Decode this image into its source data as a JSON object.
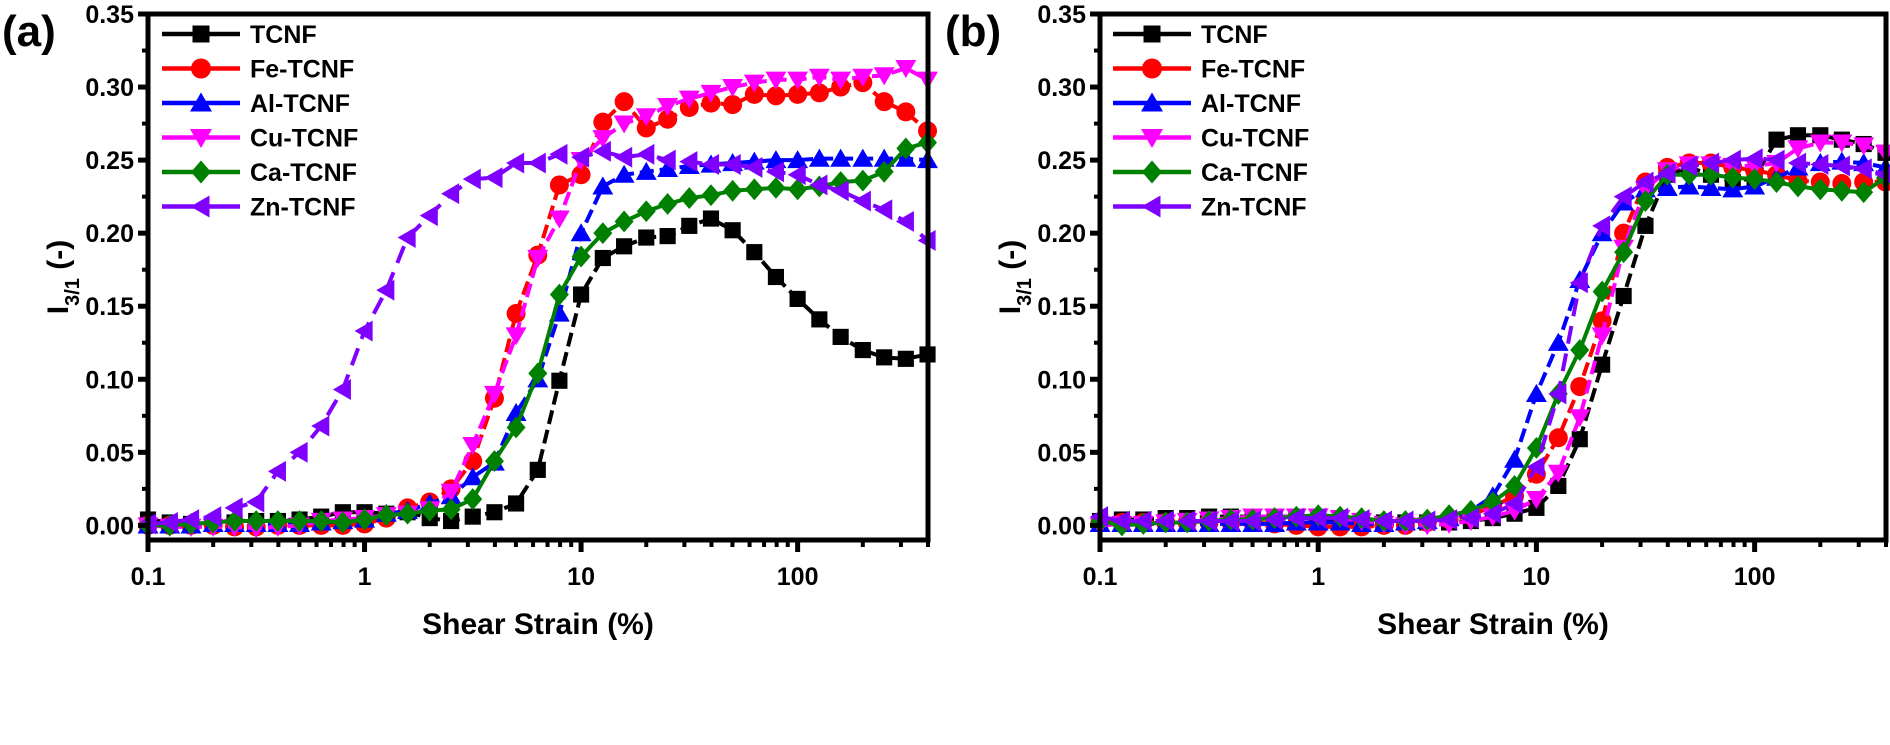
{
  "chart_data": [
    {
      "type": "line",
      "panel_label": "(a)",
      "xlabel": "Shear Strain (%)",
      "ylabel_main": "I",
      "ylabel_sub": "3/1",
      "ylabel_suffix": " (-)",
      "xscale": "log",
      "xlim": [
        0.1,
        400
      ],
      "ylim": [
        -0.01,
        0.35
      ],
      "xticks": [
        "0.1",
        "1",
        "10",
        "100"
      ],
      "xtick_values": [
        0.1,
        1,
        10,
        100
      ],
      "yticks": [
        "0.00",
        "0.05",
        "0.10",
        "0.15",
        "0.20",
        "0.25",
        "0.30",
        "0.35"
      ],
      "ytick_values": [
        0,
        0.05,
        0.1,
        0.15,
        0.2,
        0.25,
        0.3,
        0.35
      ],
      "legend_position": "top-left",
      "x": [
        0.1,
        0.126,
        0.158,
        0.2,
        0.251,
        0.316,
        0.398,
        0.501,
        0.631,
        0.794,
        1.0,
        1.26,
        1.58,
        2.0,
        2.51,
        3.16,
        3.98,
        5.01,
        6.31,
        7.94,
        10.0,
        12.6,
        15.8,
        20.0,
        25.1,
        31.6,
        39.8,
        50.1,
        63.1,
        79.4,
        100,
        126,
        158,
        200,
        251,
        316,
        398
      ],
      "series": [
        {
          "name": "TCNF",
          "color": "#000000",
          "marker": "square",
          "values": [
            0.004,
            0.002,
            0.001,
            0.001,
            0.002,
            0.003,
            0.003,
            0.004,
            0.006,
            0.009,
            0.009,
            0.008,
            0.009,
            0.005,
            0.003,
            0.006,
            0.009,
            0.015,
            0.038,
            0.099,
            0.158,
            0.183,
            0.191,
            0.197,
            0.198,
            0.205,
            0.21,
            0.202,
            0.187,
            0.17,
            0.155,
            0.141,
            0.129,
            0.12,
            0.115,
            0.114,
            0.117
          ]
        },
        {
          "name": "Fe-TCNF",
          "color": "#ff0000",
          "marker": "circle",
          "values": [
            0.0,
            0.0,
            0.0,
            0.0,
            -0.001,
            -0.001,
            0.0,
            0.0,
            0.0,
            0.0,
            0.001,
            0.005,
            0.012,
            0.016,
            0.025,
            0.044,
            0.087,
            0.145,
            0.185,
            0.233,
            0.24,
            0.276,
            0.29,
            0.272,
            0.278,
            0.286,
            0.289,
            0.288,
            0.295,
            0.294,
            0.295,
            0.296,
            0.3,
            0.303,
            0.29,
            0.283,
            0.27
          ]
        },
        {
          "name": "Al-TCNF",
          "color": "#0000ff",
          "marker": "triangle-up",
          "values": [
            0.0,
            0.0,
            0.0,
            0.001,
            0.001,
            0.001,
            0.001,
            0.001,
            0.002,
            0.003,
            0.004,
            0.008,
            0.01,
            0.015,
            0.02,
            0.033,
            0.043,
            0.077,
            0.1,
            0.145,
            0.2,
            0.232,
            0.24,
            0.242,
            0.244,
            0.246,
            0.247,
            0.248,
            0.249,
            0.25,
            0.25,
            0.251,
            0.251,
            0.251,
            0.251,
            0.251,
            0.25
          ]
        },
        {
          "name": "Cu-TCNF",
          "color": "#ff00ff",
          "marker": "triangle-down",
          "values": [
            0.0,
            -0.001,
            -0.001,
            -0.001,
            -0.001,
            -0.002,
            -0.001,
            0.0,
            0.003,
            0.004,
            0.005,
            0.007,
            0.008,
            0.011,
            0.023,
            0.055,
            0.09,
            0.13,
            0.183,
            0.21,
            0.25,
            0.265,
            0.275,
            0.28,
            0.287,
            0.292,
            0.296,
            0.3,
            0.303,
            0.305,
            0.305,
            0.307,
            0.305,
            0.307,
            0.308,
            0.313,
            0.305
          ]
        },
        {
          "name": "Ca-TCNF",
          "color": "#008000",
          "marker": "diamond",
          "values": [
            0.0,
            0.0,
            0.001,
            0.002,
            0.003,
            0.003,
            0.003,
            0.003,
            0.003,
            0.002,
            0.004,
            0.007,
            0.008,
            0.01,
            0.011,
            0.018,
            0.044,
            0.067,
            0.104,
            0.158,
            0.184,
            0.2,
            0.208,
            0.215,
            0.22,
            0.224,
            0.226,
            0.229,
            0.23,
            0.231,
            0.23,
            0.232,
            0.235,
            0.236,
            0.242,
            0.258,
            0.262
          ]
        },
        {
          "name": "Zn-TCNF",
          "color": "#8000ff",
          "marker": "triangle-left",
          "values": [
            0.001,
            0.002,
            0.004,
            0.006,
            0.012,
            0.016,
            0.037,
            0.05,
            0.068,
            0.093,
            0.133,
            0.161,
            0.197,
            0.212,
            0.227,
            0.237,
            0.238,
            0.248,
            0.248,
            0.254,
            0.252,
            0.256,
            0.252,
            0.254,
            0.25,
            0.249,
            0.247,
            0.247,
            0.245,
            0.242,
            0.24,
            0.233,
            0.229,
            0.222,
            0.216,
            0.208,
            0.195
          ]
        }
      ]
    },
    {
      "type": "line",
      "panel_label": "(b)",
      "xlabel": "Shear Strain (%)",
      "ylabel_main": "I",
      "ylabel_sub": "3/1",
      "ylabel_suffix": " (-)",
      "xscale": "log",
      "xlim": [
        0.1,
        400
      ],
      "ylim": [
        -0.01,
        0.35
      ],
      "xticks": [
        "0.1",
        "1",
        "10",
        "100"
      ],
      "xtick_values": [
        0.1,
        1,
        10,
        100
      ],
      "yticks": [
        "0.00",
        "0.05",
        "0.10",
        "0.15",
        "0.20",
        "0.25",
        "0.30",
        "0.35"
      ],
      "ytick_values": [
        0,
        0.05,
        0.1,
        0.15,
        0.2,
        0.25,
        0.3,
        0.35
      ],
      "legend_position": "top-left",
      "x": [
        0.1,
        0.126,
        0.158,
        0.2,
        0.251,
        0.316,
        0.398,
        0.501,
        0.631,
        0.794,
        1.0,
        1.26,
        1.58,
        2.0,
        2.51,
        3.16,
        3.98,
        5.01,
        6.31,
        7.94,
        10.0,
        12.6,
        15.8,
        20.0,
        25.1,
        31.6,
        39.8,
        50.1,
        63.1,
        79.4,
        100,
        126,
        158,
        200,
        251,
        316,
        398
      ],
      "series": [
        {
          "name": "TCNF",
          "color": "#000000",
          "marker": "square",
          "values": [
            0.003,
            0.004,
            0.004,
            0.005,
            0.005,
            0.006,
            0.006,
            0.006,
            0.006,
            0.006,
            0.004,
            0.004,
            0.003,
            0.002,
            0.002,
            0.002,
            0.002,
            0.003,
            0.005,
            0.008,
            0.012,
            0.027,
            0.059,
            0.11,
            0.157,
            0.205,
            0.24,
            0.245,
            0.24,
            0.235,
            0.238,
            0.264,
            0.267,
            0.267,
            0.264,
            0.261,
            0.255
          ]
        },
        {
          "name": "Fe-TCNF",
          "color": "#ff0000",
          "marker": "circle",
          "values": [
            0.002,
            0.002,
            0.002,
            0.002,
            0.002,
            0.002,
            0.002,
            0.002,
            0.001,
            0.0,
            -0.001,
            -0.001,
            -0.001,
            0.0,
            0.0,
            0.002,
            0.004,
            0.007,
            0.013,
            0.02,
            0.035,
            0.06,
            0.095,
            0.14,
            0.2,
            0.235,
            0.245,
            0.248,
            0.248,
            0.245,
            0.243,
            0.24,
            0.236,
            0.235,
            0.234,
            0.235,
            0.235
          ]
        },
        {
          "name": "Al-TCNF",
          "color": "#0000ff",
          "marker": "triangle-up",
          "values": [
            0.001,
            0.001,
            0.001,
            0.001,
            0.001,
            0.001,
            0.001,
            0.001,
            0.001,
            0.002,
            0.002,
            0.002,
            0.001,
            0.001,
            0.002,
            0.003,
            0.005,
            0.01,
            0.02,
            0.045,
            0.09,
            0.125,
            0.168,
            0.2,
            0.221,
            0.23,
            0.231,
            0.232,
            0.231,
            0.23,
            0.232,
            0.238,
            0.245,
            0.248,
            0.249,
            0.248,
            0.245
          ]
        },
        {
          "name": "Cu-TCNF",
          "color": "#ff00ff",
          "marker": "triangle-down",
          "values": [
            0.0,
            0.001,
            0.001,
            0.002,
            0.003,
            0.004,
            0.005,
            0.006,
            0.006,
            0.006,
            0.006,
            0.005,
            0.003,
            0.001,
            0.0,
            0.0,
            0.001,
            0.003,
            0.006,
            0.01,
            0.018,
            0.036,
            0.074,
            0.13,
            0.19,
            0.23,
            0.243,
            0.247,
            0.247,
            0.246,
            0.246,
            0.248,
            0.258,
            0.262,
            0.262,
            0.26,
            0.255
          ]
        },
        {
          "name": "Ca-TCNF",
          "color": "#008000",
          "marker": "diamond",
          "values": [
            0.003,
            0.0,
            0.001,
            0.002,
            0.002,
            0.003,
            0.004,
            0.004,
            0.005,
            0.006,
            0.007,
            0.006,
            0.005,
            0.003,
            0.003,
            0.004,
            0.007,
            0.01,
            0.016,
            0.027,
            0.053,
            0.09,
            0.12,
            0.16,
            0.187,
            0.222,
            0.24,
            0.24,
            0.24,
            0.238,
            0.237,
            0.235,
            0.232,
            0.23,
            0.229,
            0.228,
            0.238
          ]
        },
        {
          "name": "Zn-TCNF",
          "color": "#8000ff",
          "marker": "triangle-left",
          "values": [
            0.006,
            0.003,
            0.003,
            0.003,
            0.003,
            0.003,
            0.003,
            0.003,
            0.004,
            0.005,
            0.005,
            0.005,
            0.004,
            0.003,
            0.003,
            0.003,
            0.004,
            0.005,
            0.008,
            0.015,
            0.04,
            0.09,
            0.166,
            0.205,
            0.225,
            0.235,
            0.241,
            0.246,
            0.248,
            0.25,
            0.251,
            0.25,
            0.248,
            0.247,
            0.246,
            0.244,
            0.24
          ]
        }
      ]
    }
  ]
}
